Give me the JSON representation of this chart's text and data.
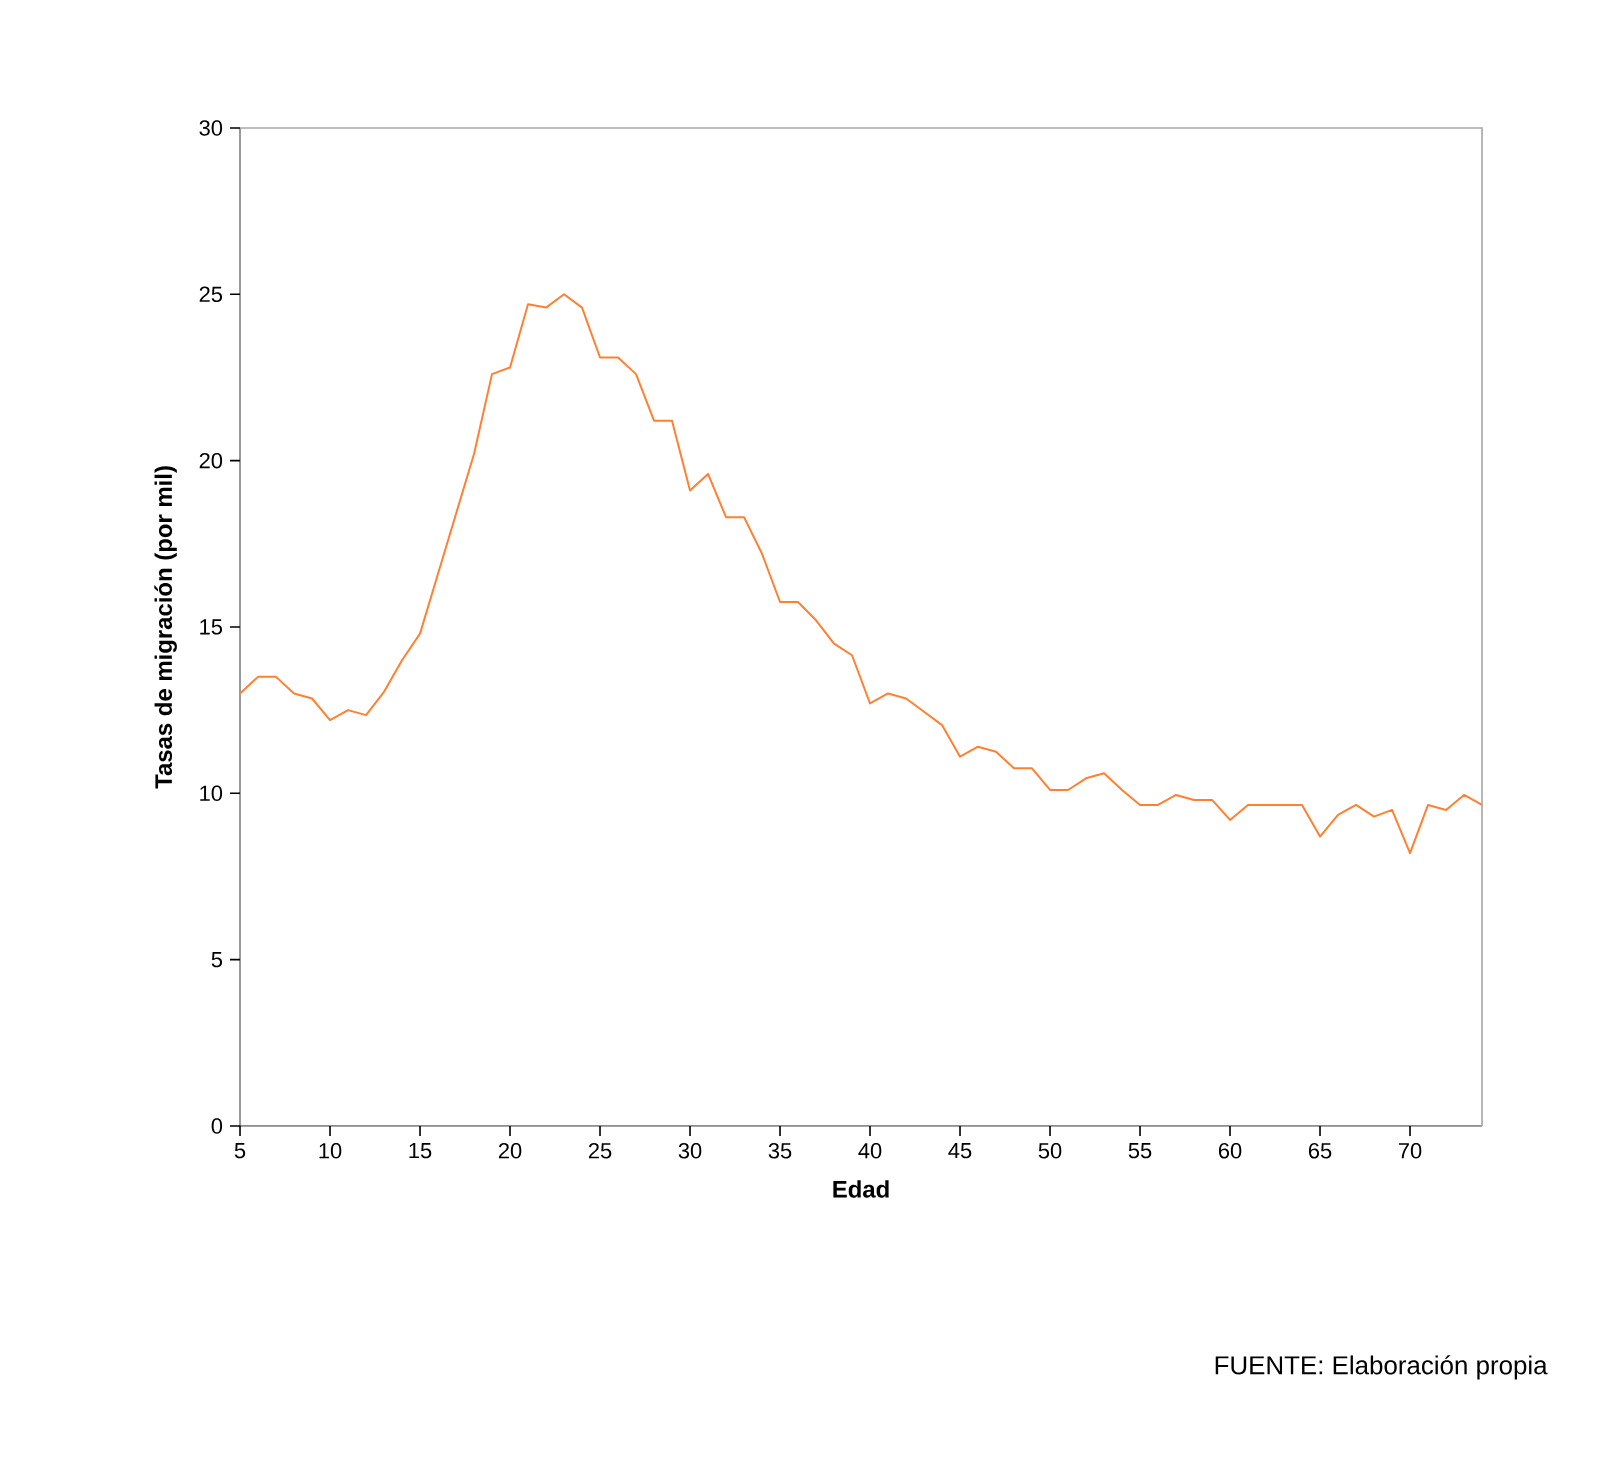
{
  "chart_data": {
    "type": "line",
    "xlabel": "Edad",
    "ylabel": "Tasas de migración (por mil)",
    "annotations": [
      "FUENTE: Elaboración propia"
    ],
    "x": [
      5,
      6,
      7,
      8,
      9,
      10,
      11,
      12,
      13,
      14,
      15,
      16,
      17,
      18,
      19,
      20,
      21,
      22,
      23,
      24,
      25,
      26,
      27,
      28,
      29,
      30,
      31,
      32,
      33,
      34,
      35,
      36,
      37,
      38,
      39,
      40,
      41,
      42,
      43,
      44,
      45,
      46,
      47,
      48,
      49,
      50,
      51,
      52,
      53,
      54,
      55,
      56,
      57,
      58,
      59,
      60,
      61,
      62,
      63,
      64,
      65,
      66,
      67,
      68,
      69,
      70,
      71,
      72,
      73,
      74
    ],
    "series": [
      {
        "color": "#ff8033",
        "values": [
          13.0,
          13.5,
          13.5,
          13.0,
          12.85,
          12.2,
          12.5,
          12.35,
          13.05,
          14.0,
          14.8,
          16.6,
          18.4,
          20.2,
          22.6,
          22.8,
          24.7,
          24.6,
          25.0,
          24.6,
          23.1,
          23.1,
          22.6,
          21.2,
          21.2,
          19.1,
          19.6,
          18.3,
          18.3,
          17.2,
          15.75,
          15.75,
          15.2,
          14.5,
          14.15,
          12.7,
          13.0,
          12.85,
          12.45,
          12.05,
          11.1,
          11.4,
          11.25,
          10.75,
          10.75,
          10.1,
          10.1,
          10.45,
          10.6,
          10.1,
          9.65,
          9.65,
          9.95,
          9.8,
          9.8,
          9.2,
          9.65,
          9.65,
          9.65,
          9.65,
          8.7,
          9.35,
          9.65,
          9.3,
          9.5,
          8.2,
          9.65,
          9.5,
          9.95,
          9.65
        ]
      }
    ],
    "xlim": [
      5,
      74
    ],
    "xticks": [
      5,
      10,
      15,
      20,
      25,
      30,
      35,
      40,
      45,
      50,
      55,
      60,
      65,
      70
    ],
    "ylim": [
      0,
      30
    ],
    "yticks": [
      0,
      5,
      10,
      15,
      20,
      25,
      30
    ],
    "grid": false,
    "marker": "none",
    "line_style": "solid"
  }
}
